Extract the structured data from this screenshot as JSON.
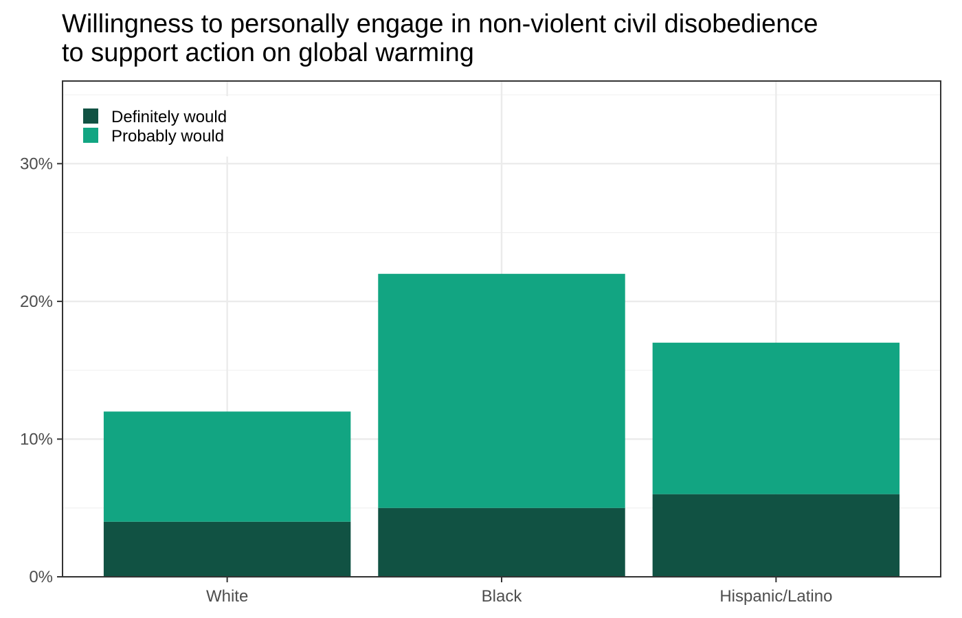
{
  "chart_data": {
    "type": "bar",
    "stacked": true,
    "title_lines": [
      "Willingness to personally engage in non-violent civil disobedience",
      "to support action on global warming"
    ],
    "xlabel": "",
    "ylabel": "",
    "categories": [
      "White",
      "Black",
      "Hispanic/Latino"
    ],
    "series": [
      {
        "name": "Definitely would",
        "values": [
          4,
          5,
          6
        ],
        "color": "#115243"
      },
      {
        "name": "Probably would",
        "values": [
          8,
          17,
          11
        ],
        "color": "#12a582"
      }
    ],
    "ylim": [
      0,
      36
    ],
    "yticks": [
      0,
      10,
      20,
      30
    ],
    "ytick_labels": [
      "0%",
      "10%",
      "20%",
      "30%"
    ],
    "grid": true,
    "legend_position": "top-left"
  }
}
